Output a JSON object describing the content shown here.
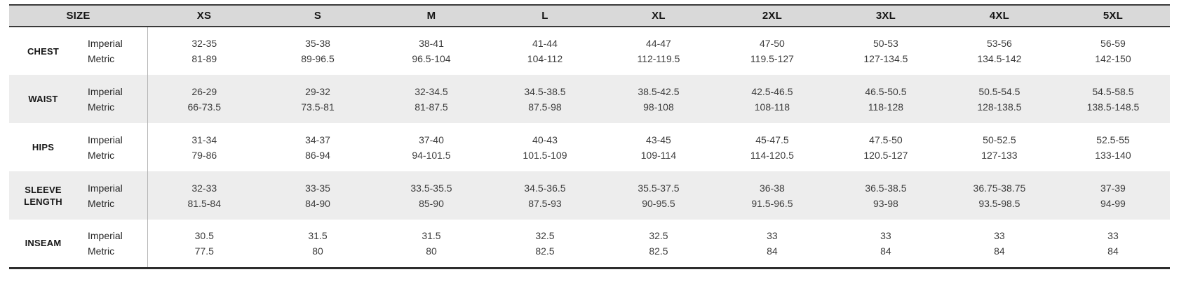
{
  "table": {
    "header": {
      "size_label": "SIZE",
      "sizes": [
        "XS",
        "S",
        "M",
        "L",
        "XL",
        "2XL",
        "3XL",
        "4XL",
        "5XL"
      ]
    },
    "unit_labels": {
      "imperial": "Imperial",
      "metric": "Metric"
    },
    "rows": [
      {
        "label": "CHEST",
        "imperial": [
          "32-35",
          "35-38",
          "38-41",
          "41-44",
          "44-47",
          "47-50",
          "50-53",
          "53-56",
          "56-59"
        ],
        "metric": [
          "81-89",
          "89-96.5",
          "96.5-104",
          "104-112",
          "112-119.5",
          "119.5-127",
          "127-134.5",
          "134.5-142",
          "142-150"
        ]
      },
      {
        "label": "WAIST",
        "imperial": [
          "26-29",
          "29-32",
          "32-34.5",
          "34.5-38.5",
          "38.5-42.5",
          "42.5-46.5",
          "46.5-50.5",
          "50.5-54.5",
          "54.5-58.5"
        ],
        "metric": [
          "66-73.5",
          "73.5-81",
          "81-87.5",
          "87.5-98",
          "98-108",
          "108-118",
          "118-128",
          "128-138.5",
          "138.5-148.5"
        ]
      },
      {
        "label": "HIPS",
        "imperial": [
          "31-34",
          "34-37",
          "37-40",
          "40-43",
          "43-45",
          "45-47.5",
          "47.5-50",
          "50-52.5",
          "52.5-55"
        ],
        "metric": [
          "79-86",
          "86-94",
          "94-101.5",
          "101.5-109",
          "109-114",
          "114-120.5",
          "120.5-127",
          "127-133",
          "133-140"
        ]
      },
      {
        "label": "SLEEVE LENGTH",
        "imperial": [
          "32-33",
          "33-35",
          "33.5-35.5",
          "34.5-36.5",
          "35.5-37.5",
          "36-38",
          "36.5-38.5",
          "36.75-38.75",
          "37-39"
        ],
        "metric": [
          "81.5-84",
          "84-90",
          "85-90",
          "87.5-93",
          "90-95.5",
          "91.5-96.5",
          "93-98",
          "93.5-98.5",
          "94-99"
        ]
      },
      {
        "label": "INSEAM",
        "imperial": [
          "30.5",
          "31.5",
          "31.5",
          "32.5",
          "32.5",
          "33",
          "33",
          "33",
          "33"
        ],
        "metric": [
          "77.5",
          "80",
          "80",
          "82.5",
          "82.5",
          "84",
          "84",
          "84",
          "84"
        ]
      }
    ],
    "colors": {
      "header_bg": "#d9d9d9",
      "stripe_bg": "#ededed",
      "border_dark": "#3a3a3a",
      "divider": "#b5b5b5",
      "value_text": "#3c3c3c",
      "label_text": "#161616"
    }
  },
  "chart_data": {
    "type": "table",
    "title": "SIZE",
    "header_row": [
      "SIZE",
      "XS",
      "S",
      "M",
      "L",
      "XL",
      "2XL",
      "3XL",
      "4XL",
      "5XL"
    ],
    "rows": [
      {
        "measurement": "CHEST",
        "unit": "Imperial",
        "values": [
          "32-35",
          "35-38",
          "38-41",
          "41-44",
          "44-47",
          "47-50",
          "50-53",
          "53-56",
          "56-59"
        ]
      },
      {
        "measurement": "CHEST",
        "unit": "Metric",
        "values": [
          "81-89",
          "89-96.5",
          "96.5-104",
          "104-112",
          "112-119.5",
          "119.5-127",
          "127-134.5",
          "134.5-142",
          "142-150"
        ]
      },
      {
        "measurement": "WAIST",
        "unit": "Imperial",
        "values": [
          "26-29",
          "29-32",
          "32-34.5",
          "34.5-38.5",
          "38.5-42.5",
          "42.5-46.5",
          "46.5-50.5",
          "50.5-54.5",
          "54.5-58.5"
        ]
      },
      {
        "measurement": "WAIST",
        "unit": "Metric",
        "values": [
          "66-73.5",
          "73.5-81",
          "81-87.5",
          "87.5-98",
          "98-108",
          "108-118",
          "118-128",
          "128-138.5",
          "138.5-148.5"
        ]
      },
      {
        "measurement": "HIPS",
        "unit": "Imperial",
        "values": [
          "31-34",
          "34-37",
          "37-40",
          "40-43",
          "43-45",
          "45-47.5",
          "47.5-50",
          "50-52.5",
          "52.5-55"
        ]
      },
      {
        "measurement": "HIPS",
        "unit": "Metric",
        "values": [
          "79-86",
          "86-94",
          "94-101.5",
          "101.5-109",
          "109-114",
          "114-120.5",
          "120.5-127",
          "127-133",
          "133-140"
        ]
      },
      {
        "measurement": "SLEEVE LENGTH",
        "unit": "Imperial",
        "values": [
          "32-33",
          "33-35",
          "33.5-35.5",
          "34.5-36.5",
          "35.5-37.5",
          "36-38",
          "36.5-38.5",
          "36.75-38.75",
          "37-39"
        ]
      },
      {
        "measurement": "SLEEVE LENGTH",
        "unit": "Metric",
        "values": [
          "81.5-84",
          "84-90",
          "85-90",
          "87.5-93",
          "90-95.5",
          "91.5-96.5",
          "93-98",
          "93.5-98.5",
          "94-99"
        ]
      },
      {
        "measurement": "INSEAM",
        "unit": "Imperial",
        "values": [
          "30.5",
          "31.5",
          "31.5",
          "32.5",
          "32.5",
          "33",
          "33",
          "33",
          "33"
        ]
      },
      {
        "measurement": "INSEAM",
        "unit": "Metric",
        "values": [
          "77.5",
          "80",
          "80",
          "82.5",
          "82.5",
          "84",
          "84",
          "84",
          "84"
        ]
      }
    ],
    "layout": {
      "striped_rows": true,
      "stripe_rows": [
        "WAIST",
        "SLEEVE LENGTH"
      ],
      "header_fill": "#d9d9d9",
      "grid": "horizontal-rules-only"
    }
  }
}
